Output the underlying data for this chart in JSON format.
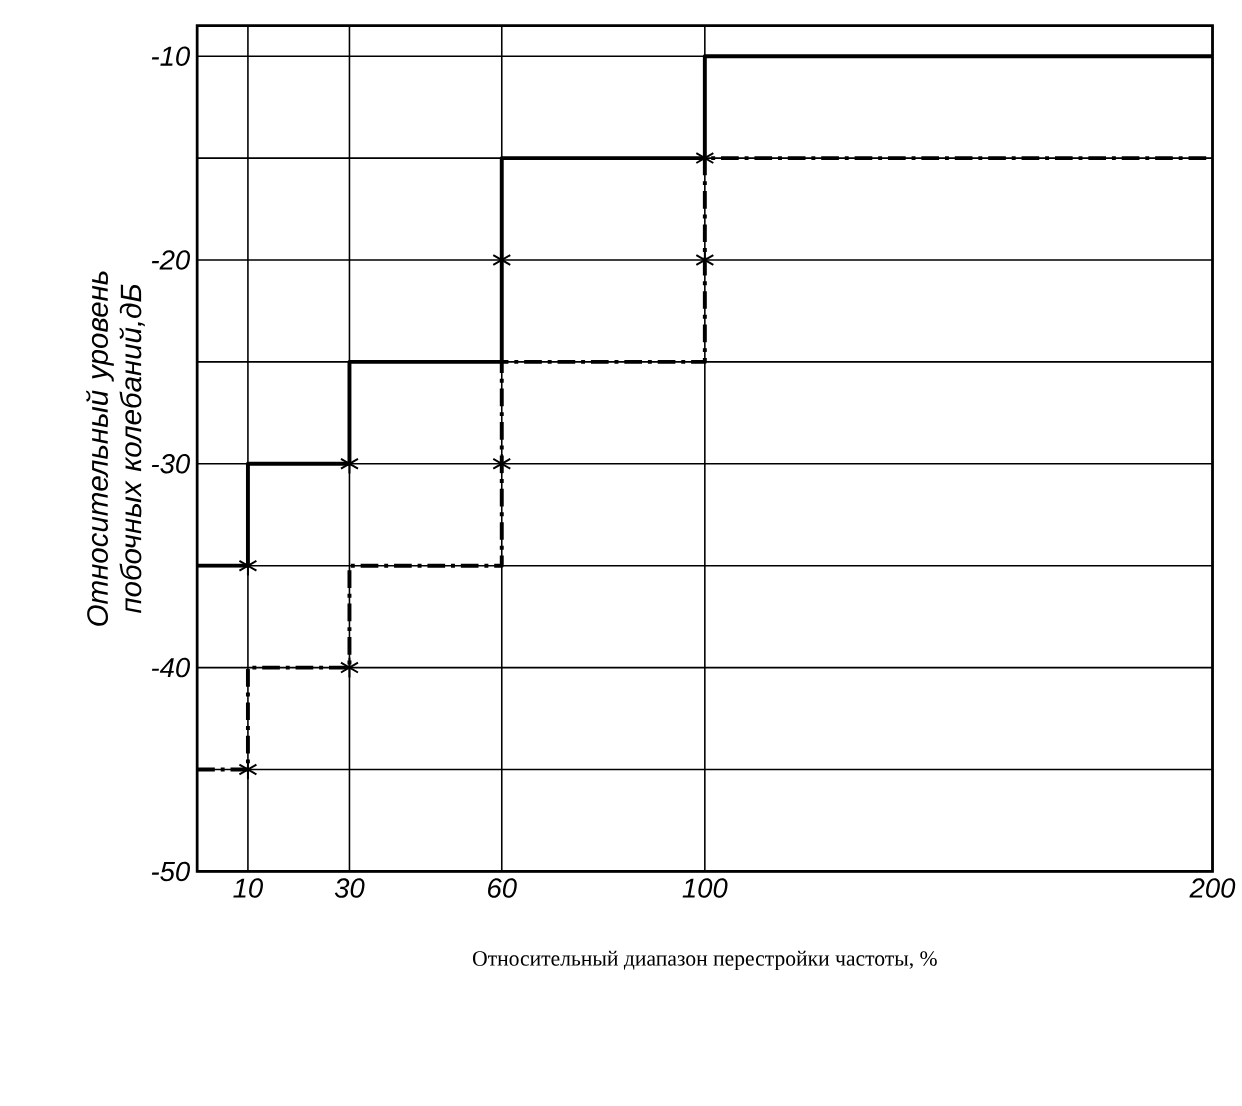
{
  "chart_data": {
    "type": "step",
    "xlabel": "Относительный диапазон перестройки частоты, %",
    "ylabel": "Относительный уровень побочных колебаний,дБ",
    "xlim": [
      0,
      200
    ],
    "xticks": [
      10,
      30,
      60,
      100,
      200
    ],
    "ylim": [
      -50,
      -8.5
    ],
    "yticks": [
      -50,
      {
        "value": -45,
        "label": null
      },
      -40,
      {
        "value": -35,
        "label": null
      },
      -30,
      {
        "value": -25,
        "label": null
      },
      -20,
      {
        "value": -15,
        "label": null
      },
      -10
    ],
    "grid": true,
    "series": [
      {
        "color": "#000000",
        "line_style": "solid",
        "marker": "none",
        "x": [
          0,
          10,
          30,
          60,
          100,
          200
        ],
        "values": [
          -35,
          -30,
          -25,
          -15,
          -10,
          -10
        ]
      },
      {
        "color": "#000000",
        "line_style": "dashed",
        "marker": "none",
        "x": [
          0,
          10,
          30,
          60,
          100,
          200
        ],
        "values": [
          -45,
          -40,
          -35,
          -25,
          -15,
          -15
        ]
      },
      {
        "type": "scatter",
        "color": "#000000",
        "marker": "cross",
        "x": [
          10,
          10,
          30,
          30,
          60,
          60,
          100,
          100
        ],
        "values": [
          -35,
          -45,
          -30,
          -40,
          -20,
          -30,
          -15,
          -20
        ]
      }
    ]
  }
}
